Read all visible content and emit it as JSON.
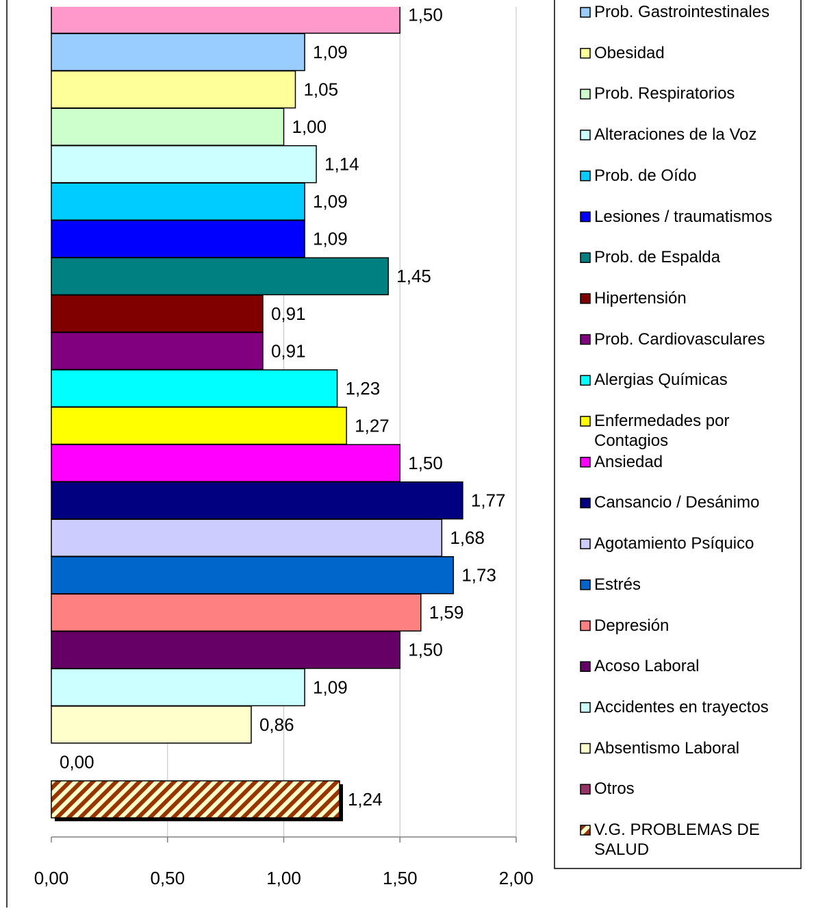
{
  "chart_data": {
    "type": "barh",
    "categories": [
      null,
      "Prob. Gastrointestinales",
      "Obesidad",
      "Prob. Respiratorios",
      "Alteraciones de la Voz",
      "Prob. de Oído",
      "Lesiones / traumatismos",
      "Prob. de Espalda",
      "Hipertensión",
      "Prob. Cardiovasculares",
      "Alergias Químicas",
      "Enfermedades por Contagios",
      "Ansiedad",
      "Cansancio / Desánimo",
      "Agotamiento Psíquico",
      "Estrés",
      "Depresión",
      "Acoso Laboral",
      "Accidentes en trayectos",
      "Absentismo Laboral",
      "Otros",
      "V.G. PROBLEMAS DE SALUD"
    ],
    "values": [
      1.5,
      1.09,
      1.05,
      1.0,
      1.14,
      1.09,
      1.09,
      1.45,
      0.91,
      0.91,
      1.23,
      1.27,
      1.5,
      1.77,
      1.68,
      1.73,
      1.59,
      1.5,
      1.09,
      0.86,
      0.0,
      1.24
    ],
    "value_labels": [
      "1,50",
      "1,09",
      "1,05",
      "1,00",
      "1,14",
      "1,09",
      "1,09",
      "1,45",
      "0,91",
      "0,91",
      "1,23",
      "1,27",
      "1,50",
      "1,77",
      "1,68",
      "1,73",
      "1,59",
      "1,50",
      "1,09",
      "0,86",
      "0,00",
      "1,24"
    ],
    "colors": [
      "#ff99cc",
      "#99ccff",
      "#ffff99",
      "#ccffcc",
      "#ccffff",
      "#00ccff",
      "#0000ff",
      "#008080",
      "#800000",
      "#800080",
      "#00ffff",
      "#ffff00",
      "#ff00ff",
      "#000080",
      "#ccccff",
      "#0066cc",
      "#ff8080",
      "#660066",
      "#ccffff",
      "#ffffcc",
      "#993366",
      "#993300"
    ],
    "hatched_index": 21,
    "xlim": [
      0,
      2
    ],
    "xticks": [
      {
        "value": 0,
        "label": "0,00"
      },
      {
        "value": 0.5,
        "label": "0,50"
      },
      {
        "value": 1,
        "label": "1,00"
      },
      {
        "value": 1.5,
        "label": "1,50"
      },
      {
        "value": 2,
        "label": "2,00"
      }
    ],
    "grid": true,
    "legend": "right"
  }
}
